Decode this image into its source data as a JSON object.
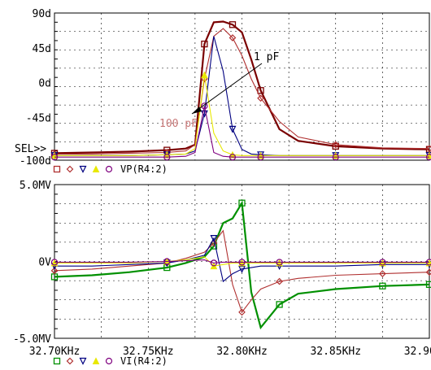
{
  "colors": {
    "dark_red": "#7a0000",
    "red": "#b03030",
    "yellow": "#e8e800",
    "navy": "#000080",
    "purple": "#7f007f",
    "green": "#009000",
    "grid": "#000000"
  },
  "chart_data": [
    {
      "type": "line",
      "ylabel": "",
      "ylim": [
        -100,
        90
      ],
      "y_tick_labels": [
        "90d",
        "45d",
        "0d",
        "-45d",
        "-100d"
      ],
      "y_tick_values": [
        90,
        45,
        0,
        -45,
        -100
      ],
      "sel_label": "SEL>>",
      "legend_label": "VP(R4:2)",
      "annotations": [
        {
          "text": "1  pF"
        },
        {
          "text": "100 pF"
        }
      ],
      "x": [
        32.7,
        32.72,
        32.74,
        32.76,
        32.77,
        32.775,
        32.78,
        32.785,
        32.79,
        32.795,
        32.8,
        32.805,
        32.81,
        32.82,
        32.83,
        32.85,
        32.875,
        32.9
      ],
      "series": [
        {
          "marker": "square",
          "color_key": "dark_red",
          "values": [
            -91,
            -90,
            -89,
            -87,
            -85,
            -80,
            50,
            78,
            79,
            75,
            65,
            30,
            -10,
            -60,
            -75,
            -82,
            -85,
            -86
          ]
        },
        {
          "marker": "diamond",
          "color_key": "red",
          "values": [
            -92,
            -92,
            -91,
            -90,
            -88,
            -80,
            5,
            60,
            70,
            58,
            35,
            5,
            -20,
            -50,
            -70,
            -80,
            -84,
            -85
          ]
        },
        {
          "marker": "triangle-down",
          "color_key": "navy",
          "values": [
            -94,
            -94,
            -94,
            -93,
            -92,
            -88,
            -40,
            60,
            15,
            -60,
            -86,
            -92,
            -93,
            -94,
            -94,
            -94,
            -94,
            -94
          ]
        },
        {
          "marker": "triangle-up",
          "color_key": "yellow",
          "values": [
            -94,
            -94,
            -94,
            -93,
            -92,
            -85,
            10,
            -65,
            -88,
            -93,
            -94,
            -94,
            -94,
            -94,
            -94,
            -94,
            -94,
            -94
          ]
        },
        {
          "marker": "circle",
          "color_key": "purple",
          "values": [
            -96,
            -96,
            -96,
            -96,
            -95,
            -90,
            -30,
            -90,
            -95,
            -96,
            -96,
            -96,
            -96,
            -96,
            -96,
            -96,
            -96,
            -96
          ]
        }
      ]
    },
    {
      "type": "line",
      "ylim": [
        -5.0,
        5.0
      ],
      "y_tick_labels": [
        "5.0MV",
        "0V",
        "-5.0MV"
      ],
      "y_tick_values": [
        5.0,
        0,
        -5.0
      ],
      "x_tick_labels": [
        "32.70KHz",
        "32.75KHz",
        "32.80KHz",
        "32.85KHz",
        "32.90KHz"
      ],
      "x_tick_values": [
        32.7,
        32.75,
        32.8,
        32.85,
        32.9
      ],
      "xlim": [
        32.7,
        32.9
      ],
      "legend_label": "VI(R4:2)",
      "x": [
        32.7,
        32.72,
        32.74,
        32.76,
        32.77,
        32.78,
        32.785,
        32.79,
        32.795,
        32.8,
        32.805,
        32.81,
        32.82,
        32.83,
        32.85,
        32.875,
        32.9
      ],
      "series": [
        {
          "marker": "square",
          "color_key": "green",
          "values": [
            -1.0,
            -0.9,
            -0.7,
            -0.4,
            -0.1,
            0.3,
            1.0,
            2.5,
            2.8,
            3.8,
            -2.0,
            -4.3,
            -2.8,
            -2.1,
            -1.8,
            -1.6,
            -1.5
          ]
        },
        {
          "marker": "diamond",
          "color_key": "red",
          "values": [
            -0.6,
            -0.5,
            -0.3,
            -0.1,
            0.2,
            0.6,
            1.2,
            2.0,
            -1.5,
            -3.3,
            -2.5,
            -1.8,
            -1.3,
            -1.1,
            -0.9,
            -0.8,
            -0.7
          ]
        },
        {
          "marker": "triangle-down",
          "color_key": "navy",
          "values": [
            -0.3,
            -0.3,
            -0.2,
            -0.1,
            0.1,
            0.4,
            1.5,
            -1.3,
            -0.8,
            -0.5,
            -0.4,
            -0.3,
            -0.3,
            -0.3,
            -0.3,
            -0.2,
            -0.2
          ]
        },
        {
          "marker": "triangle-up",
          "color_key": "yellow",
          "values": [
            -0.1,
            -0.1,
            -0.1,
            0.0,
            0.1,
            0.3,
            -0.3,
            -0.2,
            -0.1,
            -0.1,
            -0.1,
            -0.1,
            -0.1,
            -0.1,
            -0.1,
            -0.1,
            -0.1
          ]
        },
        {
          "marker": "circle",
          "color_key": "purple",
          "values": [
            -0.05,
            -0.05,
            -0.05,
            0.0,
            0.05,
            0.1,
            -0.1,
            -0.05,
            -0.05,
            -0.05,
            -0.05,
            -0.05,
            -0.05,
            -0.05,
            -0.05,
            -0.05,
            -0.05
          ]
        }
      ]
    }
  ]
}
